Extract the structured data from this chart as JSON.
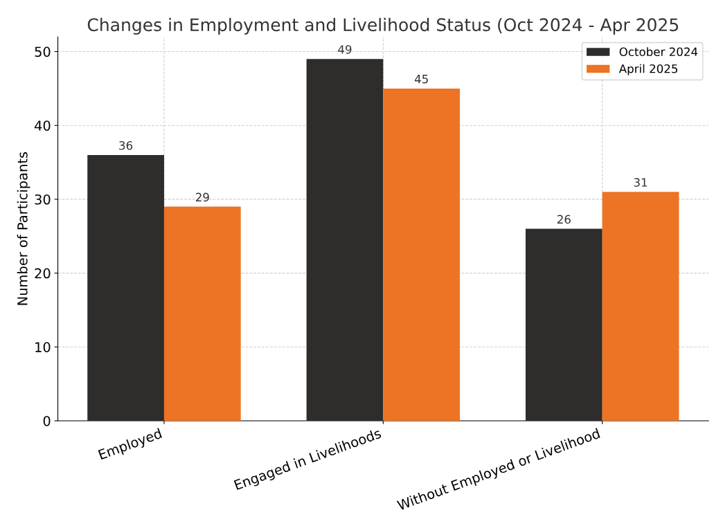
{
  "chart_data": {
    "type": "bar",
    "title": "Changes in Employment and Livelihood Status (Oct 2024 - Apr 2025",
    "ylabel": "Number of Participants",
    "categories": [
      "Employed",
      "Engaged in Livelihoods",
      "Without Employed or Livelihood"
    ],
    "series": [
      {
        "name": "October 2024",
        "color": "#2f2c2c",
        "values": [
          36,
          49,
          26
        ]
      },
      {
        "name": "April 2025",
        "color": "#ec7424",
        "values": [
          29,
          45,
          31
        ]
      }
    ],
    "ylim": [
      0,
      52
    ],
    "yticks": [
      0,
      10,
      20,
      30,
      40,
      50
    ],
    "data_labels": true,
    "grid": true,
    "legend": "top right"
  }
}
